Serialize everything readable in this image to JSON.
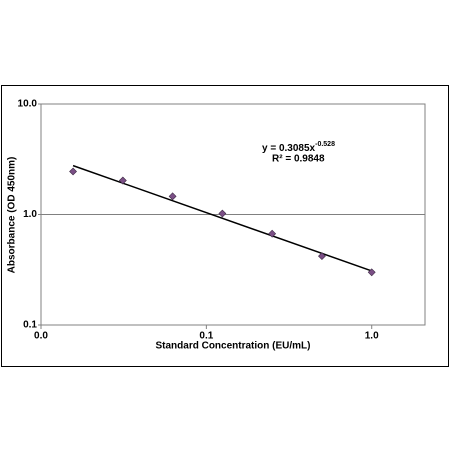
{
  "chart_data": {
    "type": "scatter",
    "x": [
      0.015625,
      0.03125,
      0.0625,
      0.125,
      0.25,
      0.5,
      1
    ],
    "values": [
      2.45,
      2.03,
      1.46,
      1.02,
      0.67,
      0.42,
      0.3
    ],
    "color": "#7b4f86",
    "xlabel": "Standard Concentration (EU/mL)",
    "ylabel": "Absorbance (OD 450nm)",
    "xscale": "log",
    "yscale": "log",
    "xlim": [
      0.01,
      2.1
    ],
    "ylim": [
      0.1,
      10
    ],
    "xticks": [
      {
        "value": 0.01,
        "label": "0.0"
      },
      {
        "value": 0.1,
        "label": "0.1"
      },
      {
        "value": 1,
        "label": "1.0"
      }
    ],
    "yticks": [
      {
        "value": 0.1,
        "label": "0.1"
      },
      {
        "value": 1,
        "label": "1.0"
      },
      {
        "value": 10,
        "label": "10.0"
      }
    ],
    "grid": true,
    "trendline": {
      "x": [
        0.015625,
        1
      ],
      "values": [
        2.77,
        0.3085
      ],
      "color": "#000000"
    },
    "equation": "y = 0.3085x",
    "equation_exponent": "-0.528",
    "r_squared": "R² = 0.9848"
  }
}
